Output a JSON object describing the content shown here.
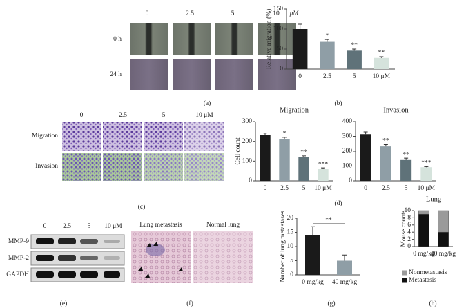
{
  "figure": {
    "panel_a": {
      "columns": [
        "0",
        "2.5",
        "5",
        "10"
      ],
      "unit": "μM",
      "rows": [
        "0 h",
        "24 h"
      ],
      "label": "(a)"
    },
    "panel_b": {
      "label": "(b)"
    },
    "panel_c": {
      "columns": [
        "0",
        "2.5",
        "5",
        "10 μM"
      ],
      "rows": [
        "Migration",
        "Invasion"
      ],
      "label": "(c)"
    },
    "panel_d": {
      "label": "(d)"
    },
    "panel_e": {
      "columns": [
        "0",
        "2.5",
        "5",
        "10 μM"
      ],
      "rows": [
        "MMP-9",
        "MMP-2",
        "GAPDH"
      ],
      "label": "(e)"
    },
    "panel_f": {
      "titles": [
        "Lung metastasis",
        "Normal lung"
      ],
      "label": "(f)"
    },
    "panel_g": {
      "label": "(g)"
    },
    "panel_h": {
      "label": "(h)"
    }
  },
  "chart_data": [
    {
      "type": "bar",
      "y_label": "Relative migration (%)",
      "categories": [
        "0",
        "2.5",
        "5",
        "10 μM"
      ],
      "values": [
        100,
        68,
        46,
        28
      ],
      "errors": [
        12,
        6,
        4,
        3
      ],
      "significance": [
        null,
        "*",
        "**",
        "**"
      ],
      "colors": [
        "#1a1a1a",
        "#8f9ea6",
        "#5f7279",
        "#d5e3dc"
      ],
      "ylim": [
        0,
        150
      ],
      "yticks": [
        0,
        50,
        100,
        150
      ]
    },
    {
      "type": "bar",
      "title": "Migration",
      "y_label": "Cell count",
      "categories": [
        "0",
        "2.5",
        "5",
        "10 μM"
      ],
      "values": [
        232,
        210,
        120,
        62
      ],
      "errors": [
        10,
        10,
        6,
        4
      ],
      "significance": [
        null,
        "*",
        "**",
        "***"
      ],
      "colors": [
        "#1a1a1a",
        "#8f9ea6",
        "#5f7279",
        "#d5e3dc"
      ],
      "ylim": [
        0,
        300
      ],
      "yticks": [
        0,
        100,
        200,
        300
      ]
    },
    {
      "type": "bar",
      "title": "Invasion",
      "categories": [
        "0",
        "2.5",
        "5",
        "10 μM"
      ],
      "values": [
        315,
        232,
        145,
        92
      ],
      "errors": [
        15,
        12,
        8,
        4
      ],
      "significance": [
        null,
        "**",
        "**",
        "***"
      ],
      "colors": [
        "#1a1a1a",
        "#8f9ea6",
        "#5f7279",
        "#d5e3dc"
      ],
      "ylim": [
        0,
        400
      ],
      "yticks": [
        0,
        100,
        200,
        300,
        400
      ]
    },
    {
      "type": "bar",
      "y_label": "Number of lung metastases",
      "categories": [
        "0 mg/kg",
        "40 mg/kg"
      ],
      "values": [
        14,
        5
      ],
      "errors": [
        3,
        2
      ],
      "annotation": "**",
      "colors": [
        "#1a1a1a",
        "#8f9ea6"
      ],
      "ylim": [
        0,
        20
      ],
      "yticks": [
        0,
        5,
        10,
        15,
        20
      ]
    },
    {
      "type": "stacked_bar",
      "title": "Lung",
      "y_label": "Mouse counts",
      "categories": [
        "0 mg/kg",
        "40 mg/kg"
      ],
      "series": [
        {
          "name": "Metastasis",
          "color": "#111111",
          "values": [
            9,
            4
          ]
        },
        {
          "name": "Nonmetastasis",
          "color": "#9a9a9a",
          "values": [
            1,
            6
          ]
        }
      ],
      "ylim": [
        0,
        10
      ],
      "yticks": [
        0,
        2,
        4,
        6,
        8,
        10
      ]
    }
  ]
}
